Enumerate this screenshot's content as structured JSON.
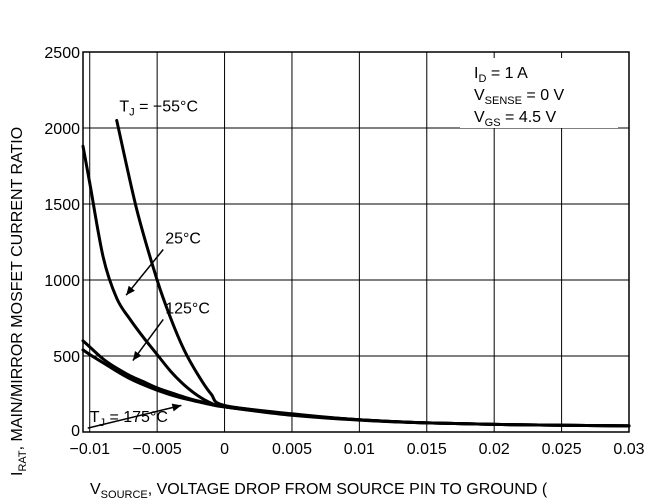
{
  "chart_data": {
    "type": "line",
    "xlabel": {
      "main": "V",
      "sub": "SOURCE",
      "rest": ", VOLTAGE DROP FROM SOURCE PIN TO GROUND ("
    },
    "ylabel": {
      "main": "I",
      "sub": "RAT",
      "rest": ", MAIN/MIRROR MOSFET CURRENT RATIO"
    },
    "xlim": [
      -0.0105,
      0.03
    ],
    "ylim": [
      0,
      2500
    ],
    "grid": true,
    "x_ticks": [
      -0.01,
      -0.005,
      0,
      0.005,
      0.01,
      0.015,
      0.02,
      0.025,
      0.03
    ],
    "x_tick_labels": [
      "−0.01",
      "−0.005",
      "0",
      "0.005",
      "0.01",
      "0.015",
      "0.02",
      "0.025",
      "0.03"
    ],
    "y_ticks": [
      0,
      500,
      1000,
      1500,
      2000,
      2500
    ],
    "y_tick_labels": [
      "0",
      "500",
      "1000",
      "1500",
      "2000",
      "2500"
    ],
    "conditions": [
      {
        "main": "I",
        "sub": "D",
        "rest": " = 1 A"
      },
      {
        "main": "V",
        "sub": "SENSE",
        "rest": " = 0 V"
      },
      {
        "main": "V",
        "sub": "GS",
        "rest": " = 4.5 V"
      }
    ],
    "series": [
      {
        "name": "T_J = −55°C",
        "x": [
          -0.008,
          -0.0065,
          -0.005,
          -0.004,
          -0.003,
          -0.002,
          -0.001,
          0,
          0.005,
          0.01,
          0.015,
          0.02,
          0.025,
          0.03
        ],
        "y": [
          2050,
          1460,
          1000,
          750,
          540,
          380,
          250,
          175,
          120,
          80,
          60,
          50,
          45,
          40
        ]
      },
      {
        "name": "25°C",
        "x": [
          -0.0105,
          -0.01,
          -0.009,
          -0.008,
          -0.007,
          -0.006,
          -0.005,
          -0.004,
          -0.003,
          -0.002,
          -0.001,
          0,
          0.005,
          0.01,
          0.015,
          0.02,
          0.025,
          0.03
        ],
        "y": [
          1880,
          1640,
          1150,
          880,
          740,
          620,
          510,
          400,
          310,
          240,
          190,
          165,
          115,
          80,
          60,
          50,
          45,
          40
        ]
      },
      {
        "name": "125°C",
        "x": [
          -0.0105,
          -0.01,
          -0.009,
          -0.008,
          -0.007,
          -0.006,
          -0.005,
          -0.004,
          -0.003,
          -0.002,
          -0.001,
          0,
          0.005,
          0.01,
          0.015,
          0.02,
          0.025,
          0.03
        ],
        "y": [
          600,
          560,
          480,
          420,
          370,
          330,
          290,
          260,
          230,
          205,
          185,
          170,
          115,
          80,
          60,
          50,
          45,
          40
        ]
      },
      {
        "name": "T_J = 175°C",
        "x": [
          -0.0105,
          -0.01,
          -0.009,
          -0.008,
          -0.007,
          -0.006,
          -0.005,
          -0.004,
          -0.003,
          -0.002,
          -0.001,
          0,
          0.005,
          0.01,
          0.015,
          0.02,
          0.025,
          0.03
        ],
        "y": [
          540,
          510,
          455,
          400,
          350,
          310,
          275,
          245,
          220,
          200,
          180,
          165,
          110,
          78,
          60,
          50,
          45,
          40
        ]
      }
    ],
    "annotations": [
      {
        "series": 0,
        "label": {
          "main": "T",
          "sub": "J",
          "rest": " = −55°C"
        },
        "x": -0.0078,
        "y": 2110,
        "arrow": false
      },
      {
        "series": 1,
        "label": {
          "main": "",
          "sub": "",
          "rest": "25°C"
        },
        "x": -0.0044,
        "y": 1240,
        "arrow_to": [
          -0.0073,
          900
        ]
      },
      {
        "series": 2,
        "label": {
          "main": "",
          "sub": "",
          "rest": "125°C"
        },
        "x": -0.0044,
        "y": 780,
        "arrow_to": [
          -0.0068,
          470
        ]
      },
      {
        "series": 3,
        "label": {
          "main": "T",
          "sub": "J",
          "rest": " = 175°C"
        },
        "x": -0.01,
        "y": 65,
        "arrow_to": [
          -0.0032,
          175
        ]
      }
    ]
  }
}
